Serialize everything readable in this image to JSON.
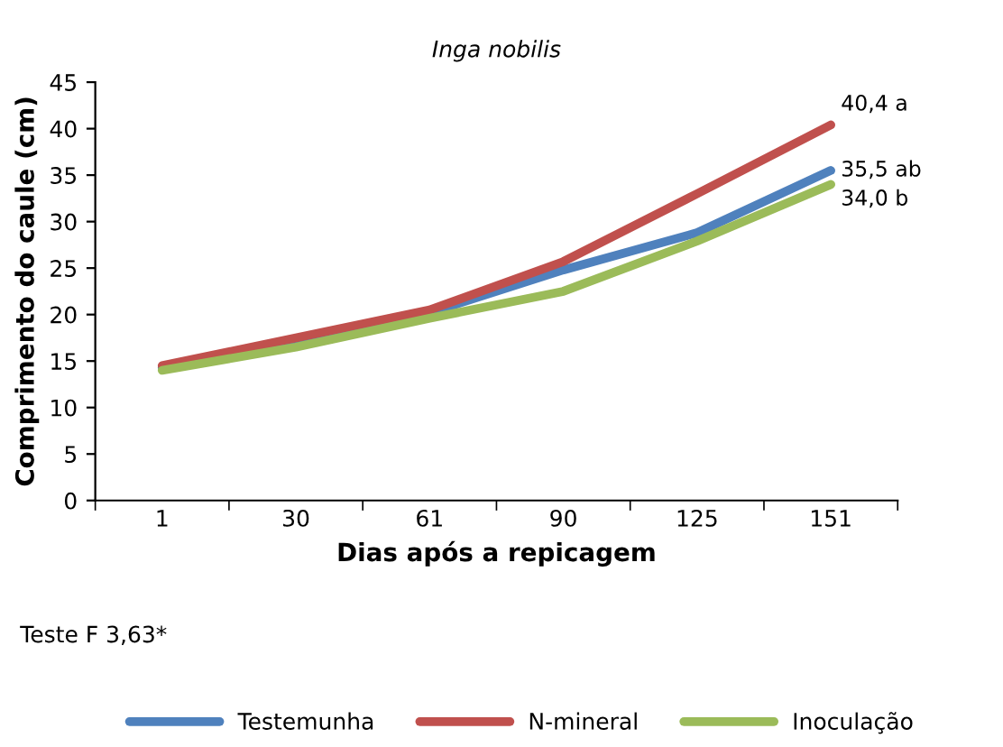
{
  "chart_data": {
    "type": "line",
    "title": "Inga nobilis",
    "xlabel": "Dias após a repicagem",
    "ylabel": "Comprimento do caule (cm)",
    "categories": [
      "1",
      "30",
      "61",
      "90",
      "125",
      "151"
    ],
    "series": [
      {
        "name": "Testemunha",
        "color": "#4f81bd",
        "values": [
          14.3,
          17.2,
          20.2,
          24.8,
          28.8,
          35.5
        ],
        "value_labels": [
          null,
          null,
          null,
          null,
          null,
          "35,5 ab"
        ]
      },
      {
        "name": "N-mineral",
        "color": "#c0504d",
        "values": [
          14.5,
          17.5,
          20.5,
          25.7,
          33.0,
          40.4
        ],
        "value_labels": [
          null,
          null,
          null,
          null,
          null,
          "40,4 a"
        ]
      },
      {
        "name": "Inoculação",
        "color": "#9bbb59",
        "values": [
          14.0,
          16.5,
          19.6,
          22.5,
          27.9,
          34.0
        ],
        "value_labels": [
          null,
          null,
          null,
          null,
          null,
          "34,0 b"
        ]
      }
    ],
    "ylim": [
      0,
      45
    ],
    "yticks": [
      0,
      5,
      10,
      15,
      20,
      25,
      30,
      35,
      40,
      45
    ],
    "grid": false,
    "legend": "bottom",
    "marker": "none",
    "line_style": "solid",
    "annotations": [
      "Teste F 3,63*"
    ]
  }
}
